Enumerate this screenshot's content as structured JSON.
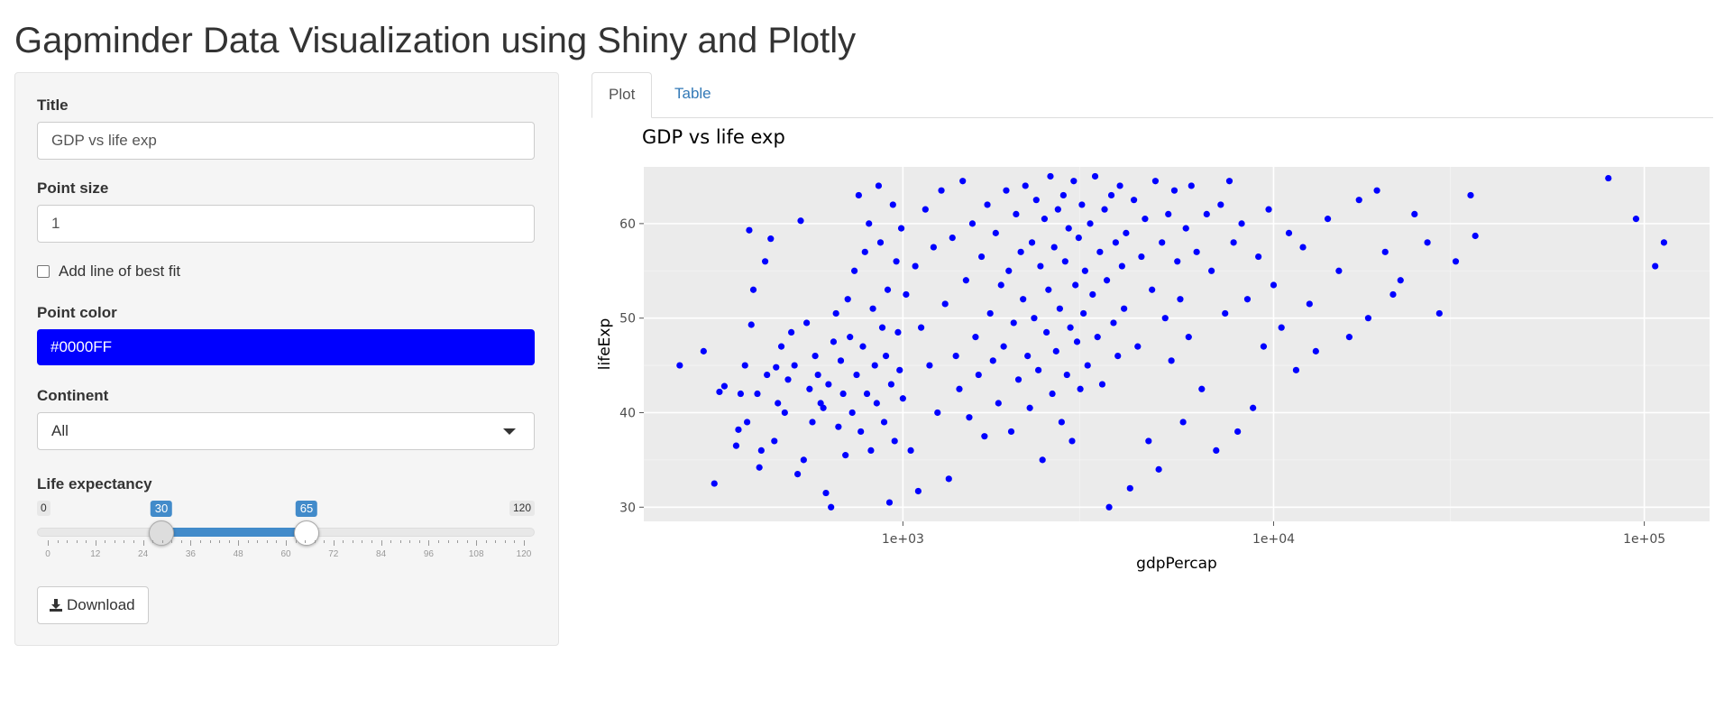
{
  "app": {
    "title": "Gapminder Data Visualization using Shiny and Plotly"
  },
  "sidebar": {
    "title_label": "Title",
    "title_value": "GDP vs life exp",
    "point_size_label": "Point size",
    "point_size_value": "1",
    "best_fit_label": "Add line of best fit",
    "best_fit_checked": false,
    "point_color_label": "Point color",
    "point_color_value": "#0000FF",
    "continent_label": "Continent",
    "continent_value": "All",
    "life_exp_label": "Life expectancy",
    "life_exp_min": "0",
    "life_exp_max": "120",
    "life_exp_low": 30,
    "life_exp_high": 65,
    "life_exp_low_label": "30",
    "life_exp_high_label": "65",
    "slider_ticks": [
      "0",
      "12",
      "24",
      "36",
      "48",
      "60",
      "72",
      "84",
      "96",
      "108",
      "120"
    ],
    "download_label": "Download"
  },
  "tabs": [
    {
      "label": "Plot",
      "active": true
    },
    {
      "label": "Table",
      "active": false
    }
  ],
  "colors": {
    "accent": "#428bca",
    "point": "#0000FF",
    "panel_bg": "#ebebeb",
    "link": "#337ab7"
  },
  "chart_data": {
    "type": "scatter",
    "title": "GDP vs life exp",
    "xlabel": "gdpPercap",
    "ylabel": "lifeExp",
    "x_scale": "log10",
    "xlim": [
      200,
      150000
    ],
    "ylim": [
      28.5,
      66
    ],
    "x_ticks": [
      1000,
      10000,
      100000
    ],
    "x_tick_labels": [
      "1e+03",
      "1e+04",
      "1e+05"
    ],
    "y_ticks": [
      30,
      40,
      50,
      60
    ],
    "y_tick_labels": [
      "30",
      "40",
      "50",
      "60"
    ],
    "grid": true,
    "point_color": "#0000FF",
    "points": [
      [
        250,
        45
      ],
      [
        290,
        46.5
      ],
      [
        310,
        32.5
      ],
      [
        320,
        42.2
      ],
      [
        330,
        42.8
      ],
      [
        355,
        36.5
      ],
      [
        360,
        38.2
      ],
      [
        365,
        42
      ],
      [
        375,
        45
      ],
      [
        380,
        39
      ],
      [
        385,
        59.3
      ],
      [
        390,
        49.3
      ],
      [
        395,
        53
      ],
      [
        405,
        42
      ],
      [
        410,
        34.2
      ],
      [
        415,
        36
      ],
      [
        425,
        56
      ],
      [
        430,
        44
      ],
      [
        440,
        58.4
      ],
      [
        450,
        37
      ],
      [
        455,
        44.8
      ],
      [
        460,
        41
      ],
      [
        470,
        47
      ],
      [
        480,
        40
      ],
      [
        490,
        43.5
      ],
      [
        500,
        48.5
      ],
      [
        510,
        45
      ],
      [
        520,
        33.5
      ],
      [
        530,
        60.3
      ],
      [
        540,
        35
      ],
      [
        550,
        49.5
      ],
      [
        560,
        42.5
      ],
      [
        570,
        39
      ],
      [
        580,
        46
      ],
      [
        590,
        44
      ],
      [
        600,
        41
      ],
      [
        610,
        40.5
      ],
      [
        620,
        31.5
      ],
      [
        630,
        43
      ],
      [
        640,
        30
      ],
      [
        650,
        47.5
      ],
      [
        660,
        50.5
      ],
      [
        670,
        38.5
      ],
      [
        680,
        45.5
      ],
      [
        690,
        42
      ],
      [
        700,
        35.5
      ],
      [
        710,
        52
      ],
      [
        720,
        48
      ],
      [
        730,
        40
      ],
      [
        740,
        55
      ],
      [
        750,
        44
      ],
      [
        760,
        63
      ],
      [
        770,
        38
      ],
      [
        780,
        47
      ],
      [
        790,
        57
      ],
      [
        800,
        42
      ],
      [
        810,
        60
      ],
      [
        820,
        36
      ],
      [
        830,
        51
      ],
      [
        840,
        45
      ],
      [
        850,
        41
      ],
      [
        860,
        64
      ],
      [
        870,
        58
      ],
      [
        880,
        49
      ],
      [
        890,
        39
      ],
      [
        900,
        46
      ],
      [
        910,
        53
      ],
      [
        920,
        30.5
      ],
      [
        930,
        43
      ],
      [
        940,
        62
      ],
      [
        950,
        37
      ],
      [
        960,
        56
      ],
      [
        970,
        48.5
      ],
      [
        980,
        44.5
      ],
      [
        990,
        59.5
      ],
      [
        1000,
        41.5
      ],
      [
        1020,
        52.5
      ],
      [
        1050,
        36
      ],
      [
        1080,
        55.5
      ],
      [
        1100,
        31.7
      ],
      [
        1120,
        49
      ],
      [
        1150,
        61.5
      ],
      [
        1180,
        45
      ],
      [
        1210,
        57.5
      ],
      [
        1240,
        40
      ],
      [
        1270,
        63.5
      ],
      [
        1300,
        51.5
      ],
      [
        1330,
        33
      ],
      [
        1360,
        58.5
      ],
      [
        1390,
        46
      ],
      [
        1420,
        42.5
      ],
      [
        1450,
        64.5
      ],
      [
        1480,
        54
      ],
      [
        1510,
        39.5
      ],
      [
        1540,
        60
      ],
      [
        1570,
        48
      ],
      [
        1600,
        44
      ],
      [
        1630,
        56.5
      ],
      [
        1660,
        37.5
      ],
      [
        1690,
        62
      ],
      [
        1720,
        50.5
      ],
      [
        1750,
        45.5
      ],
      [
        1780,
        59
      ],
      [
        1810,
        41
      ],
      [
        1840,
        53.5
      ],
      [
        1870,
        47
      ],
      [
        1900,
        63.5
      ],
      [
        1930,
        55
      ],
      [
        1960,
        38
      ],
      [
        1990,
        49.5
      ],
      [
        2020,
        61
      ],
      [
        2050,
        43.5
      ],
      [
        2080,
        57
      ],
      [
        2110,
        52
      ],
      [
        2140,
        64
      ],
      [
        2170,
        46
      ],
      [
        2200,
        40.5
      ],
      [
        2230,
        58
      ],
      [
        2260,
        50
      ],
      [
        2290,
        62.5
      ],
      [
        2320,
        44.5
      ],
      [
        2350,
        55.5
      ],
      [
        2380,
        35
      ],
      [
        2410,
        60.5
      ],
      [
        2440,
        48.5
      ],
      [
        2470,
        53
      ],
      [
        2500,
        65
      ],
      [
        2530,
        42
      ],
      [
        2560,
        57.5
      ],
      [
        2590,
        46.5
      ],
      [
        2620,
        61.5
      ],
      [
        2650,
        51
      ],
      [
        2680,
        39
      ],
      [
        2710,
        63
      ],
      [
        2740,
        56
      ],
      [
        2770,
        44
      ],
      [
        2800,
        59.5
      ],
      [
        2830,
        49
      ],
      [
        2860,
        37
      ],
      [
        2890,
        64.5
      ],
      [
        2920,
        53.5
      ],
      [
        2950,
        47.5
      ],
      [
        2980,
        58.5
      ],
      [
        3010,
        42.5
      ],
      [
        3040,
        62
      ],
      [
        3070,
        50.5
      ],
      [
        3100,
        55
      ],
      [
        3150,
        45
      ],
      [
        3200,
        60
      ],
      [
        3250,
        52.5
      ],
      [
        3300,
        65
      ],
      [
        3350,
        48
      ],
      [
        3400,
        57
      ],
      [
        3450,
        43
      ],
      [
        3500,
        61.5
      ],
      [
        3550,
        54
      ],
      [
        3600,
        30
      ],
      [
        3650,
        63
      ],
      [
        3700,
        49.5
      ],
      [
        3750,
        58
      ],
      [
        3800,
        46
      ],
      [
        3850,
        64
      ],
      [
        3900,
        55.5
      ],
      [
        3950,
        51
      ],
      [
        4000,
        59
      ],
      [
        4100,
        32
      ],
      [
        4200,
        62.5
      ],
      [
        4300,
        47
      ],
      [
        4400,
        56.5
      ],
      [
        4500,
        60.5
      ],
      [
        4600,
        37
      ],
      [
        4700,
        53
      ],
      [
        4800,
        64.5
      ],
      [
        4900,
        34
      ],
      [
        5000,
        58
      ],
      [
        5100,
        50
      ],
      [
        5200,
        61
      ],
      [
        5300,
        45.5
      ],
      [
        5400,
        63.5
      ],
      [
        5500,
        56
      ],
      [
        5600,
        52
      ],
      [
        5700,
        39
      ],
      [
        5800,
        59.5
      ],
      [
        5900,
        48
      ],
      [
        6000,
        64
      ],
      [
        6200,
        57
      ],
      [
        6400,
        42.5
      ],
      [
        6600,
        61
      ],
      [
        6800,
        55
      ],
      [
        7000,
        36
      ],
      [
        7200,
        62
      ],
      [
        7400,
        50.5
      ],
      [
        7600,
        64.5
      ],
      [
        7800,
        58
      ],
      [
        8000,
        38
      ],
      [
        8200,
        60
      ],
      [
        8500,
        52
      ],
      [
        8800,
        40.5
      ],
      [
        9100,
        56.5
      ],
      [
        9400,
        47
      ],
      [
        9700,
        61.5
      ],
      [
        10000,
        53.5
      ],
      [
        10500,
        49
      ],
      [
        11000,
        59
      ],
      [
        11500,
        44.5
      ],
      [
        12000,
        57.5
      ],
      [
        12500,
        51.5
      ],
      [
        13000,
        46.5
      ],
      [
        14000,
        60.5
      ],
      [
        15000,
        55
      ],
      [
        16000,
        48
      ],
      [
        17000,
        62.5
      ],
      [
        18000,
        50
      ],
      [
        19000,
        63.5
      ],
      [
        20000,
        57
      ],
      [
        21000,
        52.5
      ],
      [
        22000,
        54
      ],
      [
        24000,
        61
      ],
      [
        26000,
        58
      ],
      [
        28000,
        50.5
      ],
      [
        31000,
        56
      ],
      [
        34000,
        63
      ],
      [
        35000,
        58.7
      ],
      [
        80000,
        64.8
      ],
      [
        95000,
        60.5
      ],
      [
        107000,
        55.5
      ],
      [
        113000,
        58
      ]
    ]
  }
}
